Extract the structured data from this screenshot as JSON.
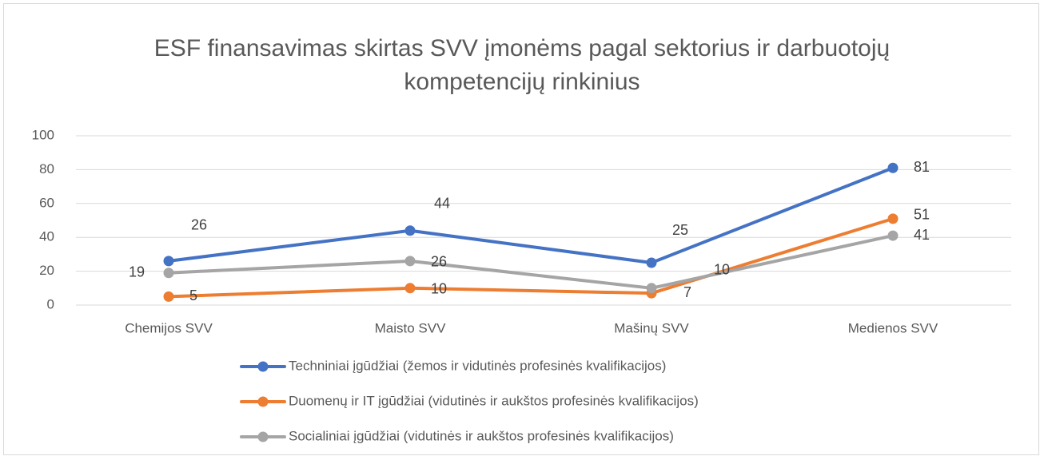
{
  "chart_data": {
    "type": "line",
    "title": "ESF finansavimas skirtas SVV įmonėms pagal sektorius ir darbuotojų kompetencijų rinkinius",
    "categories": [
      "Chemijos SVV",
      "Maisto SVV",
      "Mašinų SVV",
      "Medienos SVV"
    ],
    "series": [
      {
        "name": "Techniniai įgūdžiai (žemos ir vidutinės profesinės kvalifikacijos)",
        "color": "#4472c4",
        "values": [
          26,
          44,
          25,
          81
        ]
      },
      {
        "name": "Duomenų ir IT įgūdžiai (vidutinės ir aukštos profesinės kvalifikacijos)",
        "color": "#ed7d31",
        "values": [
          5,
          10,
          7,
          51
        ]
      },
      {
        "name": "Socialiniai įgūdžiai (vidutinės ir aukštos profesinės kvalifikacijos)",
        "color": "#a5a5a5",
        "values": [
          19,
          26,
          10,
          41
        ]
      }
    ],
    "ylim": [
      0,
      100
    ],
    "yticks": [
      0,
      20,
      40,
      60,
      80,
      100
    ],
    "grid": true,
    "legend": "bottom"
  }
}
